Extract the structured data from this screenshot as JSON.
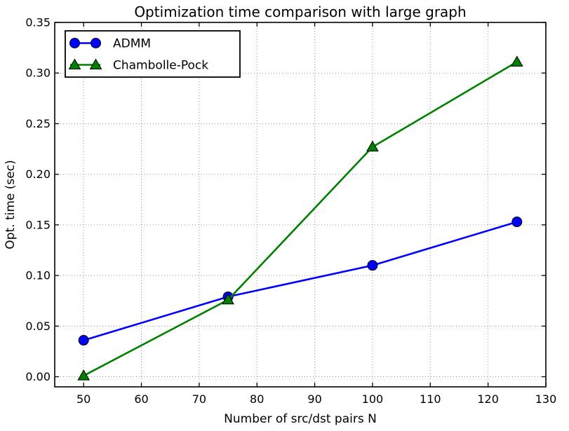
{
  "chart_data": {
    "type": "line",
    "title": "Optimization time comparison with large graph",
    "xlabel": "Number of src/dst pairs N",
    "ylabel": "Opt. time (sec)",
    "xlim": [
      45,
      130
    ],
    "ylim": [
      -0.01,
      0.35
    ],
    "xticks": [
      50,
      60,
      70,
      80,
      90,
      100,
      110,
      120,
      130
    ],
    "yticks": [
      0.0,
      0.05,
      0.1,
      0.15,
      0.2,
      0.25,
      0.3,
      0.35
    ],
    "ytick_labels": [
      "0.00",
      "0.05",
      "0.10",
      "0.15",
      "0.20",
      "0.25",
      "0.30",
      "0.35"
    ],
    "grid": true,
    "grid_style": "dotted",
    "legend_position": "upper left",
    "x": [
      50,
      75,
      100,
      125
    ],
    "series": [
      {
        "name": "ADMM",
        "color": "#0000ff",
        "marker": "circle",
        "values": [
          0.036,
          0.079,
          0.11,
          0.153
        ]
      },
      {
        "name": "Chambolle-Pock",
        "color": "#008000",
        "marker": "triangle",
        "values": [
          0.001,
          0.076,
          0.227,
          0.311
        ]
      }
    ],
    "colors": {
      "background": "#ffffff",
      "grid": "#969696",
      "spine": "#000000",
      "text": "#000000",
      "marker_edge": "#000000",
      "legend_border": "#000000"
    }
  }
}
